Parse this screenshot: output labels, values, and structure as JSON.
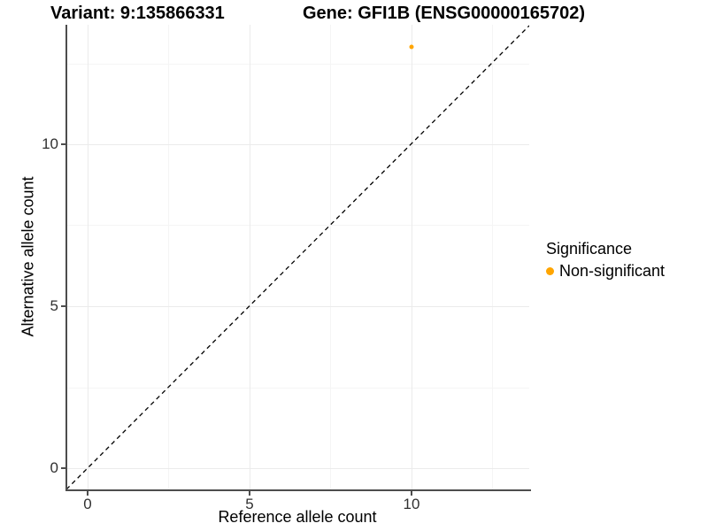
{
  "figure": {
    "background": "#FFFFFF",
    "axis_line_color": "#4d4d4d",
    "grid_major_color": "#ebebeb",
    "grid_minor_color": "#f5f5f5"
  },
  "chart_data": {
    "type": "scatter",
    "title_left": "Variant: 9:135866331",
    "title_right": "Gene: GFI1B (ENSG00000165702)",
    "xlabel": "Reference allele count",
    "ylabel": "Alternative allele count",
    "x_ticks": [
      0,
      5,
      10
    ],
    "y_ticks": [
      0,
      5,
      10
    ],
    "xlim": [
      -0.7,
      13.6
    ],
    "ylim": [
      -0.7,
      13.7
    ],
    "grid": "major and minor gridlines, light gray, on white background",
    "identity_line": {
      "style": "dashed",
      "color": "#000000",
      "from": [
        -0.7,
        -0.7
      ],
      "to": [
        13.7,
        13.7
      ]
    },
    "series": [
      {
        "name": "Non-significant",
        "color": "#FFA500",
        "points": [
          {
            "x": 10,
            "y": 13
          }
        ]
      }
    ],
    "legend": {
      "title": "Significance",
      "position": "right",
      "items": [
        {
          "label": "Non-significant",
          "color": "#FFA500",
          "marker": "circle"
        }
      ]
    }
  }
}
